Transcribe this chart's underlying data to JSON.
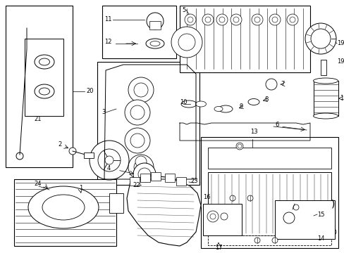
{
  "bg": "#ffffff",
  "lc": "#000000",
  "fig_w": 4.89,
  "fig_h": 3.6,
  "dpi": 100,
  "fontsize": 6.0,
  "lw_main": 0.7,
  "lw_thin": 0.4
}
